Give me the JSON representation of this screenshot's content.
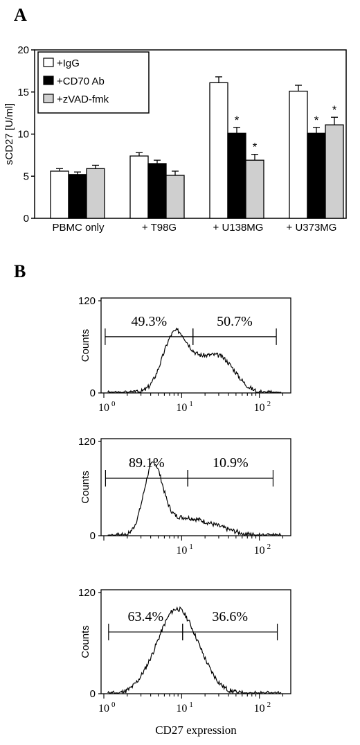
{
  "panel_a_letter": "A",
  "panel_b_letter": "B",
  "chart_data": [
    {
      "type": "bar",
      "ylabel": "sCD27 [U/ml]",
      "ylim": [
        0,
        20
      ],
      "yticks": [
        "0",
        "5",
        "10",
        "15",
        "20"
      ],
      "categories": [
        "PBMC only",
        "+ T98G",
        "+ U138MG",
        "+ U373MG"
      ],
      "legend_position": "top-left",
      "series": [
        {
          "name": "+IgG",
          "color": "#ffffff",
          "values": [
            5.6,
            7.4,
            16.1,
            15.1
          ],
          "errors": [
            0.3,
            0.4,
            0.7,
            0.7
          ],
          "marks": [
            "",
            "",
            "",
            ""
          ]
        },
        {
          "name": "+CD70 Ab",
          "color": "#000000",
          "values": [
            5.2,
            6.5,
            10.1,
            10.1
          ],
          "errors": [
            0.3,
            0.4,
            0.7,
            0.7
          ],
          "marks": [
            "",
            "",
            "*",
            "*"
          ]
        },
        {
          "name": "+zVAD-fmk",
          "color": "#cfcfcf",
          "values": [
            5.9,
            5.1,
            6.9,
            11.1
          ],
          "errors": [
            0.4,
            0.5,
            0.7,
            0.9
          ],
          "marks": [
            "",
            "",
            "*",
            "*"
          ]
        }
      ]
    },
    {
      "type": "histogram",
      "ylabel": "Counts",
      "yticks": [
        "0",
        "120"
      ],
      "ylim": [
        0,
        120
      ],
      "xscale": "log",
      "xticks": [
        "10",
        "10",
        "10"
      ],
      "xtick_exponents": [
        "0",
        "1",
        "2"
      ],
      "gates": [
        {
          "label": "49.3%",
          "from": 1.04,
          "to": 14
        },
        {
          "label": "50.7%",
          "from": 14,
          "to": 165
        }
      ],
      "peaks": [
        {
          "x": 8.2,
          "height": 77,
          "width": 0.16
        },
        {
          "x": 31,
          "height": 45,
          "width": 0.2
        },
        {
          "x": 16,
          "height": 20,
          "width": 0.15
        }
      ],
      "noise_seed": 3
    },
    {
      "type": "histogram",
      "ylabel": "Counts",
      "yticks": [
        "0",
        "120"
      ],
      "ylim": [
        0,
        120
      ],
      "xscale": "log",
      "xticks": [
        "10",
        "10"
      ],
      "xtick_exponents": [
        "1",
        "2"
      ],
      "gates": [
        {
          "label": "89.1%",
          "from": 1.05,
          "to": 12
        },
        {
          "label": "10.9%",
          "from": 12,
          "to": 150
        }
      ],
      "peaks": [
        {
          "x": 4.3,
          "height": 85,
          "width": 0.12
        },
        {
          "x": 9.5,
          "height": 20,
          "width": 0.25
        },
        {
          "x": 25,
          "height": 10,
          "width": 0.25
        }
      ],
      "noise_seed": 7
    },
    {
      "type": "histogram",
      "ylabel": "Counts",
      "yticks": [
        "0",
        "120"
      ],
      "ylim": [
        0,
        120
      ],
      "xscale": "log",
      "xlabel": "CD27 expression",
      "xticks": [
        "10",
        "10",
        "10"
      ],
      "xtick_exponents": [
        "0",
        "1",
        "2"
      ],
      "gates": [
        {
          "label": "63.4%",
          "from": 1.15,
          "to": 10.3
        },
        {
          "label": "36.6%",
          "from": 10.3,
          "to": 170
        }
      ],
      "peaks": [
        {
          "x": 7.2,
          "height": 68,
          "width": 0.2
        },
        {
          "x": 13,
          "height": 52,
          "width": 0.22
        },
        {
          "x": 3.5,
          "height": 10,
          "width": 0.15
        }
      ],
      "noise_seed": 11
    }
  ]
}
